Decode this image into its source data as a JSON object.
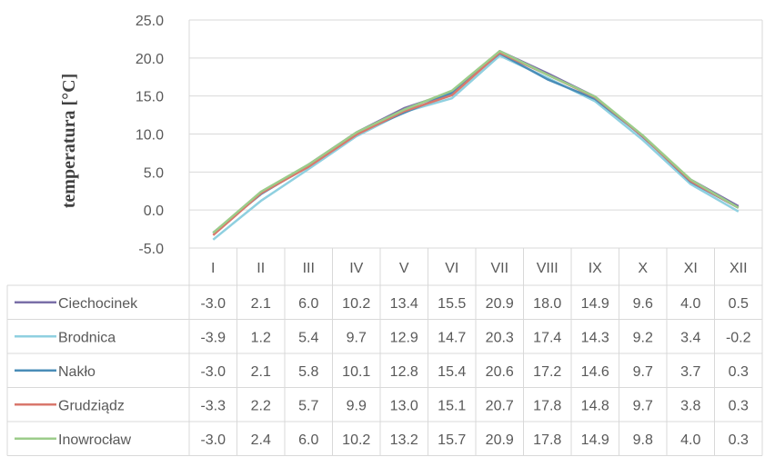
{
  "chart_data": {
    "type": "line",
    "ylabel": "temperatura [°C]",
    "ylim": [
      -5.0,
      25.0
    ],
    "yticks": [
      "25.0",
      "20.0",
      "15.0",
      "10.0",
      "5.0",
      "0.0",
      "-5.0"
    ],
    "categories": [
      "I",
      "II",
      "III",
      "IV",
      "V",
      "VI",
      "VII",
      "VIII",
      "IX",
      "X",
      "XI",
      "XII"
    ],
    "grid": true,
    "legend": "data-table",
    "series": [
      {
        "name": "Ciechocinek",
        "color": "#7a6fa8",
        "values": [
          -3.0,
          2.1,
          6.0,
          10.2,
          13.4,
          15.5,
          20.9,
          18.0,
          14.9,
          9.6,
          4.0,
          0.5
        ],
        "labels": [
          "-3.0",
          "2.1",
          "6.0",
          "10.2",
          "13.4",
          "15.5",
          "20.9",
          "18.0",
          "14.9",
          "9.6",
          "4.0",
          "0.5"
        ]
      },
      {
        "name": "Brodnica",
        "color": "#8fd0e0",
        "values": [
          -3.9,
          1.2,
          5.4,
          9.7,
          12.9,
          14.7,
          20.3,
          17.4,
          14.3,
          9.2,
          3.4,
          -0.2
        ],
        "labels": [
          "-3.9",
          "1.2",
          "5.4",
          "9.7",
          "12.9",
          "14.7",
          "20.3",
          "17.4",
          "14.3",
          "9.2",
          "3.4",
          "-0.2"
        ]
      },
      {
        "name": "Nakło",
        "color": "#4a8db8",
        "values": [
          -3.0,
          2.1,
          5.8,
          10.1,
          12.8,
          15.4,
          20.6,
          17.2,
          14.6,
          9.7,
          3.7,
          0.3
        ],
        "labels": [
          "-3.0",
          "2.1",
          "5.8",
          "10.1",
          "12.8",
          "15.4",
          "20.6",
          "17.2",
          "14.6",
          "9.7",
          "3.7",
          "0.3"
        ]
      },
      {
        "name": "Grudziądz",
        "color": "#d9776c",
        "values": [
          -3.3,
          2.2,
          5.7,
          9.9,
          13.0,
          15.1,
          20.7,
          17.8,
          14.8,
          9.7,
          3.8,
          0.3
        ],
        "labels": [
          "-3.3",
          "2.2",
          "5.7",
          "9.9",
          "13.0",
          "15.1",
          "20.7",
          "17.8",
          "14.8",
          "9.7",
          "3.8",
          "0.3"
        ]
      },
      {
        "name": "Inowrocław",
        "color": "#9ccc8a",
        "values": [
          -3.0,
          2.4,
          6.0,
          10.2,
          13.2,
          15.7,
          20.9,
          17.8,
          14.9,
          9.8,
          4.0,
          0.3
        ],
        "labels": [
          "-3.0",
          "2.4",
          "6.0",
          "10.2",
          "13.2",
          "15.7",
          "20.9",
          "17.8",
          "14.9",
          "9.8",
          "4.0",
          "0.3"
        ]
      }
    ]
  }
}
